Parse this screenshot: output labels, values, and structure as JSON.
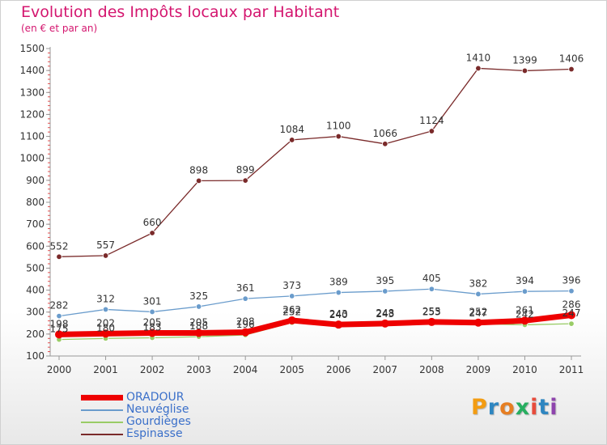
{
  "title": "Evolution des Impôts locaux par Habitant",
  "subtitle": "(en € et par an)",
  "brand": {
    "letters": [
      "P",
      "r",
      "o",
      "x",
      "i",
      "t",
      "i"
    ],
    "colors": [
      "#f39c12",
      "#2e86c1",
      "#e67e22",
      "#27ae60",
      "#e74c3c",
      "#2e86c1",
      "#8e44ad"
    ]
  },
  "chart_data": {
    "type": "line",
    "title": "Evolution des Impôts locaux par Habitant",
    "subtitle": "(en € et par an)",
    "xlabel": "",
    "ylabel": "",
    "x": [
      "2000",
      "2001",
      "2002",
      "2003",
      "2004",
      "2005",
      "2006",
      "2007",
      "2008",
      "2009",
      "2010",
      "2011"
    ],
    "ylim": [
      100,
      1500
    ],
    "yticks": [
      "100",
      "200",
      "300",
      "400",
      "500",
      "600",
      "700",
      "800",
      "900",
      "1000",
      "1100",
      "1200",
      "1300",
      "1400",
      "1500"
    ],
    "grid": false,
    "legend": "bottom-left",
    "series": [
      {
        "name": "ORADOUR",
        "color": "#ee0000",
        "values": [
          198,
          202,
          205,
          205,
          208,
          262,
          243,
          248,
          255,
          252,
          261,
          286
        ],
        "labels": [
          "198",
          "202",
          "205",
          "205",
          "208",
          "262",
          "243",
          "248",
          "255",
          "252",
          "261",
          "286"
        ]
      },
      {
        "name": "Neuvéglise",
        "color": "#6a9ccc",
        "values": [
          282,
          312,
          301,
          325,
          361,
          373,
          389,
          395,
          405,
          382,
          394,
          396
        ],
        "labels": [
          "282",
          "312",
          "301",
          "325",
          "361",
          "373",
          "389",
          "395",
          "405",
          "382",
          "394",
          "396"
        ]
      },
      {
        "name": "Gourdièges",
        "color": "#99cc66",
        "values": [
          175,
          180,
          183,
          188,
          196,
          252,
          240,
          243,
          253,
          247,
          242,
          247
        ],
        "labels": [
          "175",
          "180",
          "183",
          "188",
          "196",
          "252",
          "240",
          "243",
          "253",
          "247",
          "242",
          "247"
        ]
      },
      {
        "name": "Espinasse",
        "color": "#7a2a2a",
        "values": [
          552,
          557,
          660,
          898,
          899,
          1084,
          1100,
          1066,
          1124,
          1410,
          1399,
          1406
        ],
        "labels": [
          "552",
          "557",
          "660",
          "898",
          "899",
          "1084",
          "1100",
          "1066",
          "1124",
          "1410",
          "1399",
          "1406"
        ]
      }
    ]
  }
}
